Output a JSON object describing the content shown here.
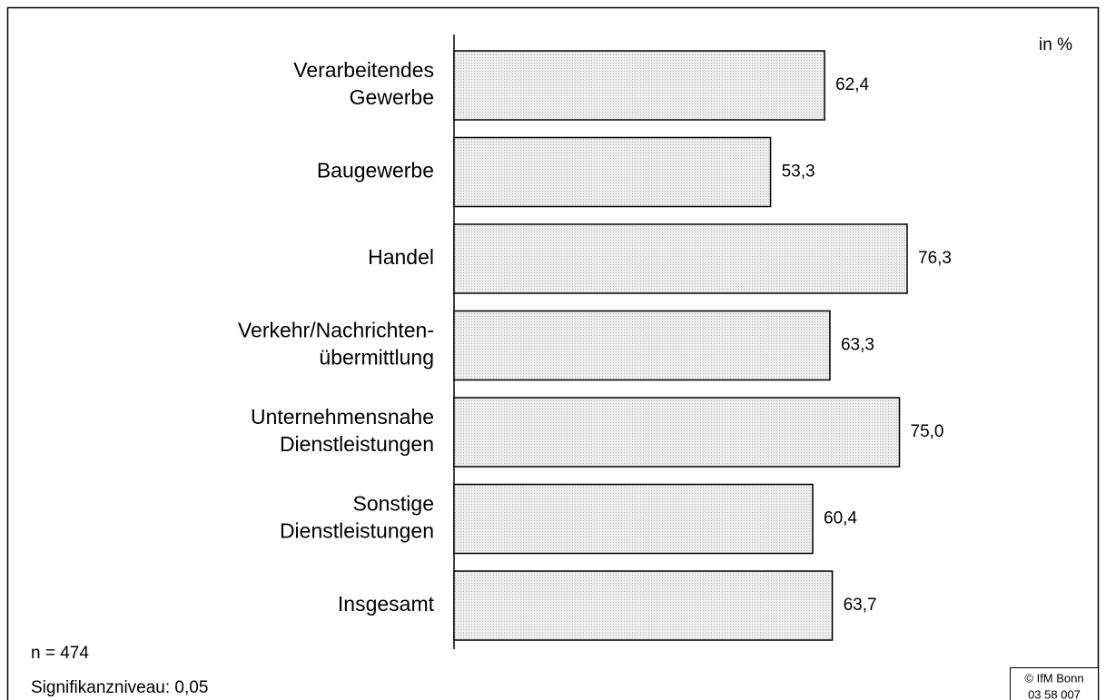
{
  "chart_data": {
    "type": "barh",
    "categories": [
      [
        "Verarbeitendes",
        "Gewerbe"
      ],
      [
        "Baugewerbe"
      ],
      [
        "Handel"
      ],
      [
        "Verkehr/Nachrichten-",
        "übermittlung"
      ],
      [
        "Unternehmensnahe",
        "Dienstleistungen"
      ],
      [
        "Sonstige",
        "Dienstleistungen"
      ],
      [
        "Insgesamt"
      ]
    ],
    "values": [
      62.4,
      53.3,
      76.3,
      63.3,
      75.0,
      60.4,
      63.7
    ],
    "value_labels": [
      "62,4",
      "53,3",
      "76,3",
      "63,3",
      "75,0",
      "60,4",
      "63,7"
    ],
    "color": "#e2e2e2",
    "xlim": [
      0,
      100
    ],
    "unit_label": "in %",
    "notes": [
      "n = 474",
      "Signifikanzniveau: 0,05"
    ],
    "source": [
      "© IfM Bonn",
      "03 58 007"
    ]
  }
}
